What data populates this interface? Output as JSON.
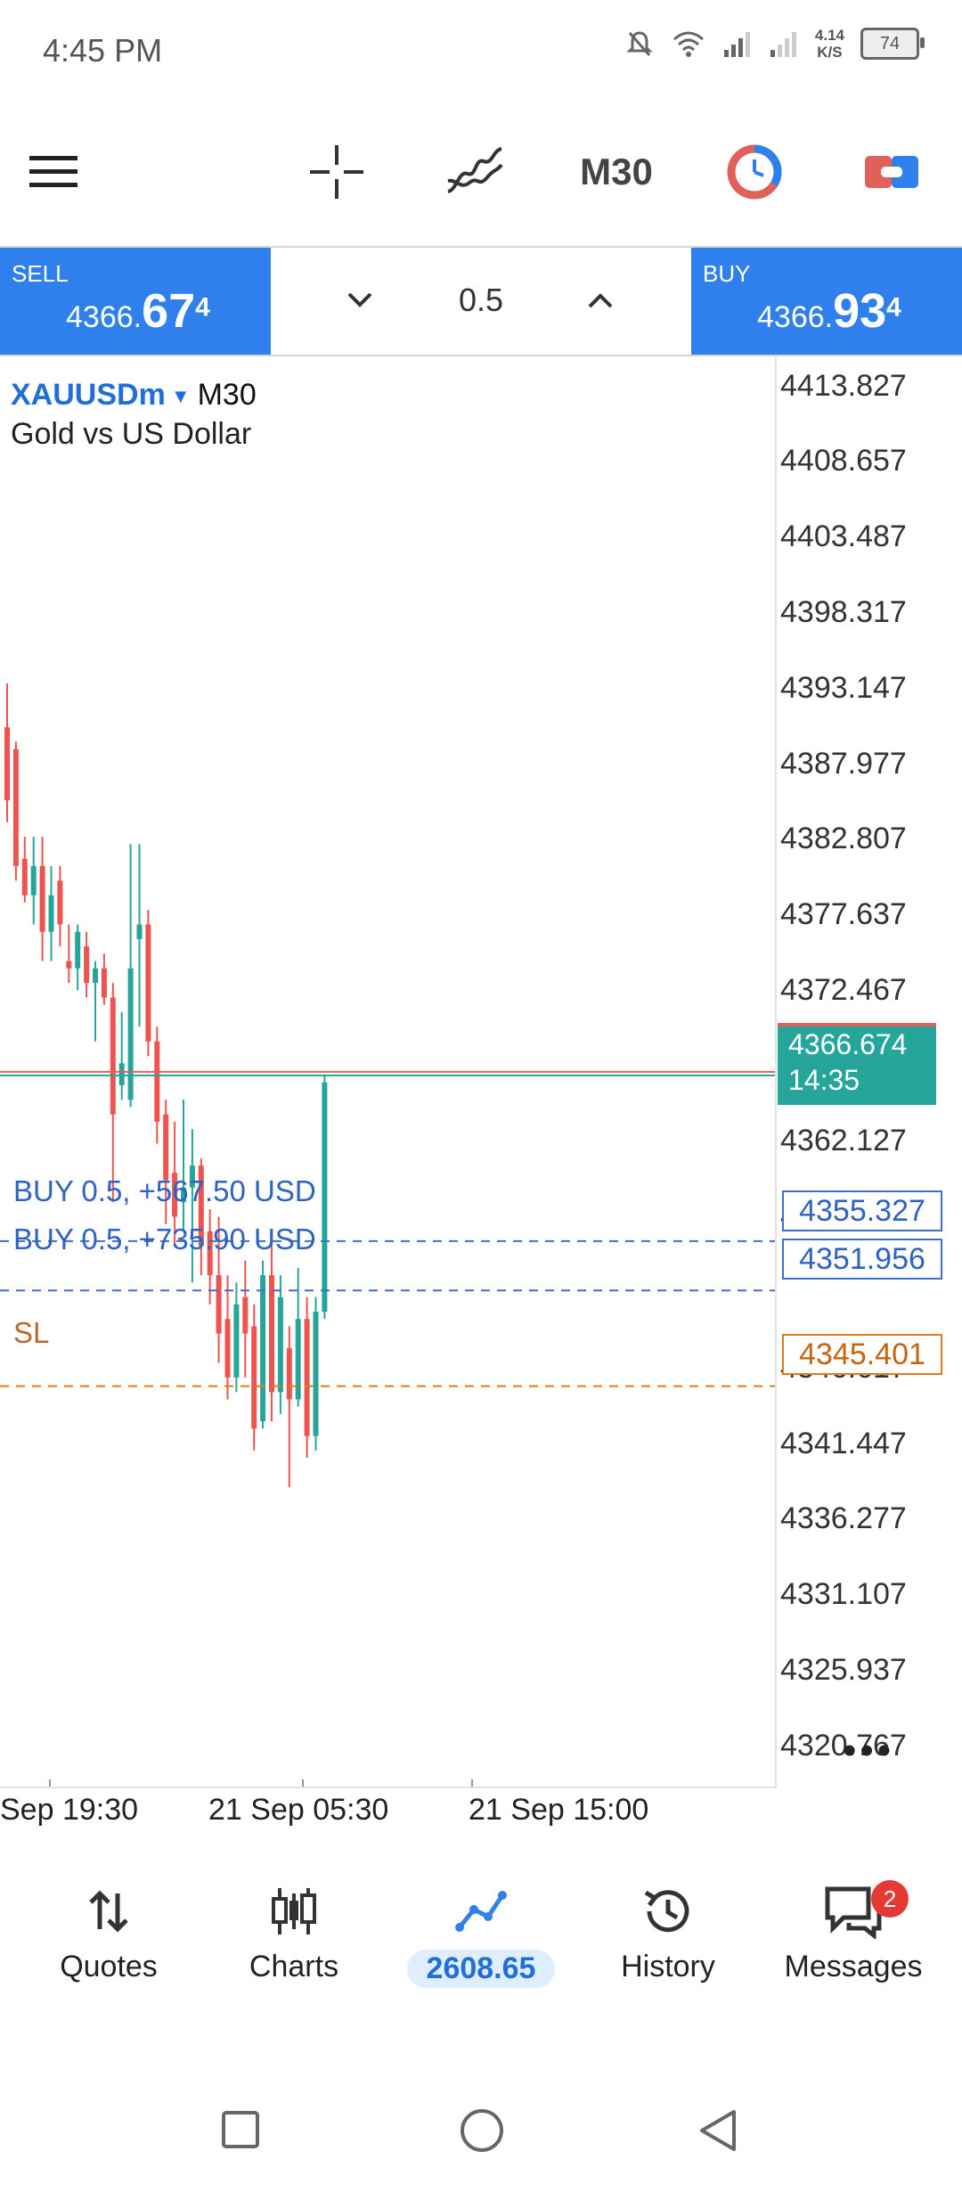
{
  "status_bar": {
    "time": "4:45 PM",
    "net_speed_value": "4.14",
    "net_speed_unit": "K/S",
    "battery": "74"
  },
  "toolbar": {
    "timeframe": "M30"
  },
  "trade": {
    "sell_label": "SELL",
    "sell_price_main": "4366.",
    "sell_price_big": "67",
    "sell_price_sup": "4",
    "buy_label": "BUY",
    "buy_price_main": "4366.",
    "buy_price_big": "93",
    "buy_price_sup": "4",
    "lot": "0.5"
  },
  "chart": {
    "symbol": "XAUUSDm",
    "timeframe": "M30",
    "description": "Gold vs US Dollar",
    "price_axis": [
      "4413.827",
      "4408.657",
      "4403.487",
      "4398.317",
      "4393.147",
      "4387.977",
      "4382.807",
      "4377.637",
      "4372.467",
      "4362.127",
      "4356.957",
      "4346.617",
      "4341.447",
      "4336.277",
      "4331.107",
      "4325.937",
      "4320.767"
    ],
    "current_price": "4366.674",
    "countdown": "14:35",
    "orders": [
      {
        "label": "BUY 0.5,  +567.50 USD",
        "price": "4355.327"
      },
      {
        "label": "BUY 0.5,  +735.90 USD",
        "price": "4351.956"
      }
    ],
    "sl_label": "SL",
    "sl_price": "4345.401",
    "time_axis": [
      "Sep 19:30",
      "21 Sep 05:30",
      "21 Sep 15:00"
    ]
  },
  "chart_data": {
    "type": "candlestick",
    "title": "",
    "xlabel": "",
    "ylabel": "",
    "ylim": [
      4318.0,
      4416.0
    ],
    "candles": [
      {
        "o": 4390.5,
        "h": 4393.5,
        "l": 4384.0,
        "c": 4385.5
      },
      {
        "o": 4389.0,
        "h": 4389.5,
        "l": 4380.0,
        "c": 4381.0
      },
      {
        "o": 4381.5,
        "h": 4383.0,
        "l": 4378.5,
        "c": 4379.0
      },
      {
        "o": 4379.0,
        "h": 4383.0,
        "l": 4377.0,
        "c": 4381.0
      },
      {
        "o": 4381.0,
        "h": 4383.0,
        "l": 4374.5,
        "c": 4376.5
      },
      {
        "o": 4376.5,
        "h": 4381.0,
        "l": 4374.5,
        "c": 4379.0
      },
      {
        "o": 4380.0,
        "h": 4381.0,
        "l": 4375.5,
        "c": 4377.0
      },
      {
        "o": 4374.5,
        "h": 4377.0,
        "l": 4373.0,
        "c": 4374.0
      },
      {
        "o": 4374.0,
        "h": 4377.0,
        "l": 4372.5,
        "c": 4376.5
      },
      {
        "o": 4375.5,
        "h": 4376.5,
        "l": 4372.0,
        "c": 4373.0
      },
      {
        "o": 4373.0,
        "h": 4374.5,
        "l": 4369.0,
        "c": 4374.0
      },
      {
        "o": 4374.0,
        "h": 4375.0,
        "l": 4371.5,
        "c": 4372.0
      },
      {
        "o": 4372.0,
        "h": 4373.0,
        "l": 4358.0,
        "c": 4364.0
      },
      {
        "o": 4366.0,
        "h": 4371.0,
        "l": 4365.0,
        "c": 4367.5
      },
      {
        "o": 4365.0,
        "h": 4382.5,
        "l": 4364.5,
        "c": 4374.0
      },
      {
        "o": 4376.0,
        "h": 4382.5,
        "l": 4370.0,
        "c": 4377.0
      },
      {
        "o": 4377.0,
        "h": 4378.0,
        "l": 4368.0,
        "c": 4369.0
      },
      {
        "o": 4369.0,
        "h": 4370.0,
        "l": 4362.0,
        "c": 4363.5
      },
      {
        "o": 4364.0,
        "h": 4365.0,
        "l": 4356.5,
        "c": 4359.5
      },
      {
        "o": 4360.0,
        "h": 4363.5,
        "l": 4355.0,
        "c": 4357.0
      },
      {
        "o": 4358.0,
        "h": 4365.0,
        "l": 4356.0,
        "c": 4359.0
      },
      {
        "o": 4359.0,
        "h": 4363.0,
        "l": 4352.5,
        "c": 4360.5
      },
      {
        "o": 4360.5,
        "h": 4361.0,
        "l": 4353.0,
        "c": 4355.0
      },
      {
        "o": 4356.0,
        "h": 4357.5,
        "l": 4351.0,
        "c": 4353.0
      },
      {
        "o": 4353.0,
        "h": 4357.0,
        "l": 4347.0,
        "c": 4349.0
      },
      {
        "o": 4350.0,
        "h": 4353.0,
        "l": 4344.5,
        "c": 4346.0
      },
      {
        "o": 4346.0,
        "h": 4352.5,
        "l": 4345.0,
        "c": 4351.0
      },
      {
        "o": 4351.5,
        "h": 4354.0,
        "l": 4346.0,
        "c": 4349.0
      },
      {
        "o": 4349.5,
        "h": 4351.0,
        "l": 4341.0,
        "c": 4342.5
      },
      {
        "o": 4343.0,
        "h": 4354.0,
        "l": 4342.5,
        "c": 4353.0
      },
      {
        "o": 4353.0,
        "h": 4356.0,
        "l": 4343.0,
        "c": 4345.0
      },
      {
        "o": 4345.0,
        "h": 4353.0,
        "l": 4343.5,
        "c": 4351.5
      },
      {
        "o": 4348.0,
        "h": 4349.5,
        "l": 4338.5,
        "c": 4344.5
      },
      {
        "o": 4344.5,
        "h": 4353.5,
        "l": 4344.0,
        "c": 4350.0
      },
      {
        "o": 4350.0,
        "h": 4351.5,
        "l": 4340.5,
        "c": 4342.0
      },
      {
        "o": 4342.0,
        "h": 4351.5,
        "l": 4341.0,
        "c": 4350.5
      },
      {
        "o": 4350.5,
        "h": 4366.7,
        "l": 4350.0,
        "c": 4366.2
      }
    ]
  },
  "nav": {
    "quotes": "Quotes",
    "charts": "Charts",
    "balance": "2608.65",
    "history": "History",
    "messages": "Messages",
    "messages_badge": "2"
  },
  "colors": {
    "accent": "#2f80ed",
    "bull": "#26a69a",
    "bear": "#ef5350",
    "order": "#3d6fc7",
    "sl": "#e07b1b"
  }
}
